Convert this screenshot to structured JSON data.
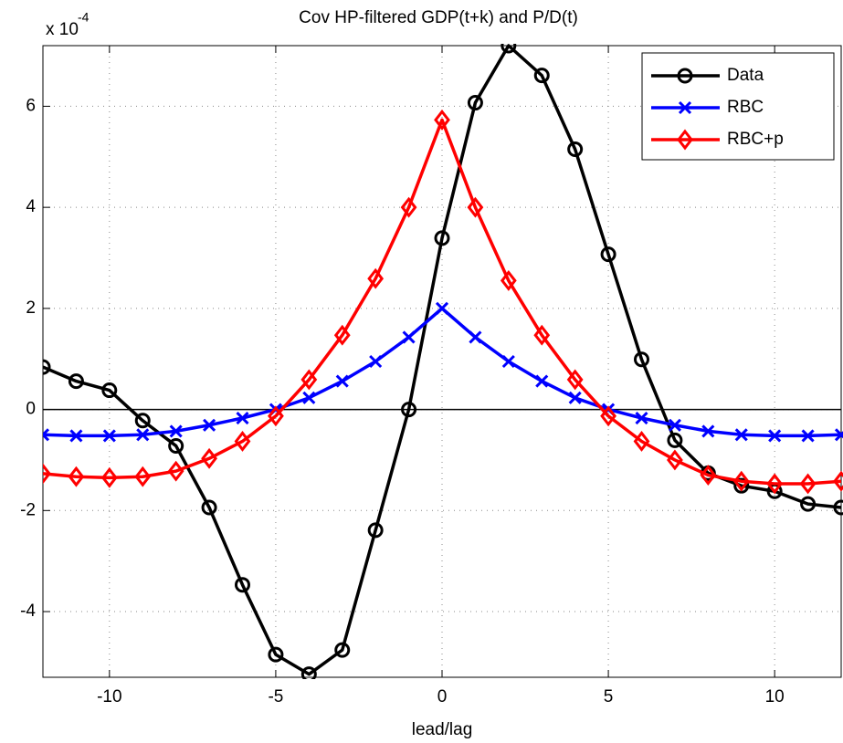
{
  "chart_data": {
    "type": "line",
    "title": "Cov HP-filtered GDP(t+k) and P/D(t)",
    "x_label": "lead/lag",
    "y_multiplier": "x 10",
    "y_exponent": "-4",
    "x": [
      -12,
      -11,
      -10,
      -9,
      -8,
      -7,
      -6,
      -5,
      -4,
      -3,
      -2,
      -1,
      0,
      1,
      2,
      3,
      4,
      5,
      6,
      7,
      8,
      9,
      10,
      11,
      12
    ],
    "series": [
      {
        "name": "Data",
        "color": "#000000",
        "marker": "circle",
        "values": [
          0.84,
          0.56,
          0.38,
          -0.22,
          -0.72,
          -1.94,
          -3.47,
          -4.85,
          -5.24,
          -4.76,
          -2.39,
          0,
          3.39,
          6.07,
          7.2,
          6.61,
          5.15,
          3.07,
          0.99,
          -0.61,
          -1.26,
          -1.51,
          -1.62,
          -1.87,
          -1.94
        ]
      },
      {
        "name": "RBC",
        "color": "#0000ff",
        "marker": "x",
        "values": [
          -0.5,
          -0.52,
          -0.52,
          -0.5,
          -0.43,
          -0.31,
          -0.17,
          0,
          0.23,
          0.56,
          0.95,
          1.43,
          2.0,
          1.43,
          0.95,
          0.56,
          0.23,
          0,
          -0.17,
          -0.31,
          -0.43,
          -0.5,
          -0.52,
          -0.52,
          -0.5
        ]
      },
      {
        "name": "RBC+p",
        "color": "#ff0000",
        "marker": "diamond",
        "values": [
          -1.27,
          -1.33,
          -1.35,
          -1.33,
          -1.22,
          -0.97,
          -0.63,
          -0.13,
          0.59,
          1.47,
          2.59,
          4.0,
          5.73,
          4.0,
          2.55,
          1.47,
          0.59,
          -0.13,
          -0.63,
          -1.0,
          -1.3,
          -1.42,
          -1.47,
          -1.47,
          -1.42
        ]
      }
    ],
    "xlim": [
      -12,
      12
    ],
    "ylim": [
      -5.3,
      7.2
    ],
    "xticks": [
      -10,
      -5,
      0,
      5,
      10
    ],
    "yticks": [
      -4,
      -2,
      0,
      2,
      4,
      6
    ],
    "grid": true,
    "zero_line": true,
    "legend": "top-right"
  }
}
